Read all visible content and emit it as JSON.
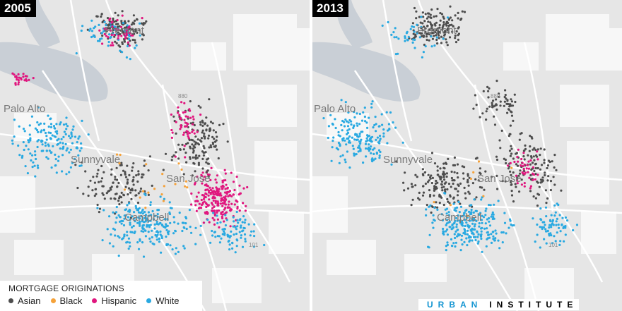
{
  "panels": [
    {
      "year": "2005"
    },
    {
      "year": "2013"
    }
  ],
  "places": {
    "fremont": "Fremont",
    "palo_alto": "Palo Alto",
    "sunnyvale": "Sunnyvale",
    "san_jose": "San Jose",
    "campbell": "Campbell"
  },
  "highways": {
    "i880": "880",
    "us101": "101"
  },
  "legend": {
    "title": "MORTGAGE ORIGINATIONS",
    "items": [
      {
        "label": "Asian",
        "color": "#4d4d4d"
      },
      {
        "label": "Black",
        "color": "#f5a23a"
      },
      {
        "label": "Hispanic",
        "color": "#e0167e"
      },
      {
        "label": "White",
        "color": "#29a9e1"
      }
    ]
  },
  "brand": {
    "urban": "URBAN",
    "institute": "INSTITUTE",
    "accent": "#1696d2"
  },
  "colors": {
    "land": "#e6e6e6",
    "water": "#c9cfd6",
    "open_space": "#f7f7f7",
    "roads": "#ffffff"
  }
}
